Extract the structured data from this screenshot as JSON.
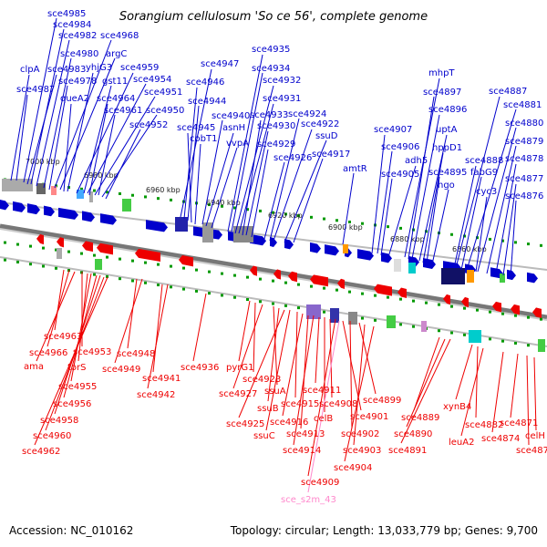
{
  "title": "Sorangium cellulosum 'So ce 56', complete genome",
  "accession": "Accession: NC_010162",
  "topology": "Topology: circular; Length: 13,033,779 bp; Genes: 9,700",
  "colors": {
    "forward": "#0000cc",
    "reverse": "#ee0000",
    "rna": "#ff88cc",
    "backbone": "#777777",
    "kb_tick": "#009900"
  },
  "kbp_ticks": [
    "7000 kbp",
    "6980 kbp",
    "6960 kbp",
    "6940 kbp",
    "6920 kbp",
    "6900 kbp",
    "6880 kbp",
    "6860 kbp"
  ],
  "top_labels": [
    "sce4985",
    "sce4984",
    "sce4982",
    "sce4968",
    "sce4980",
    "argC",
    "clpA",
    "sce4983",
    "yhjG3",
    "sce4959",
    "sce4978",
    "gst11",
    "sce4954",
    "sce4987",
    "queA2",
    "sce4964",
    "sce4951",
    "sce4961",
    "sce4950",
    "sce4952",
    "sce4947",
    "sce4946",
    "sce4944",
    "sce4945",
    "cobT1",
    "sce4940",
    "asnH",
    "vvpA",
    "sce4935",
    "sce4934",
    "sce4932",
    "sce4931",
    "sce4933",
    "sce4930",
    "sce4929",
    "sce4926",
    "sce4924",
    "sce4922",
    "ssuD",
    "sce4917",
    "amtR",
    "mhpT",
    "sce4897",
    "sce4896",
    "sce4907",
    "sce4906",
    "sce4905",
    "adh5",
    "uptA",
    "hppD1",
    "sce4895",
    "hgo",
    "sce4887",
    "sce4881",
    "sce4880",
    "sce4879",
    "sce4878",
    "sce4888",
    "fabG9",
    "cyc3",
    "sce4877",
    "sce4876"
  ],
  "bottom_labels": [
    "sce4963",
    "sce4966",
    "ama",
    "sce4953",
    "torS",
    "sce4955",
    "sce4956",
    "sce4958",
    "sce4960",
    "sce4962",
    "sce4948",
    "sce4949",
    "sce4941",
    "sce4942",
    "sce4936",
    "pyrG1",
    "sce4923",
    "sce4927",
    "ssuA",
    "ssuB",
    "sce4925",
    "ssuC",
    "sce4915",
    "sce4916",
    "sce4913",
    "sce4914",
    "sce4911",
    "celB",
    "sce4908",
    "sce4909",
    "sce4901",
    "sce4902",
    "sce4899",
    "sce4903",
    "sce4904",
    "sce4889",
    "sce4890",
    "sce4891",
    "xynB4",
    "sce4882",
    "leuA2",
    "sce4874",
    "sce4871",
    "celH",
    "sce4870"
  ],
  "rna_labels": [
    "sce_s2m_43"
  ]
}
